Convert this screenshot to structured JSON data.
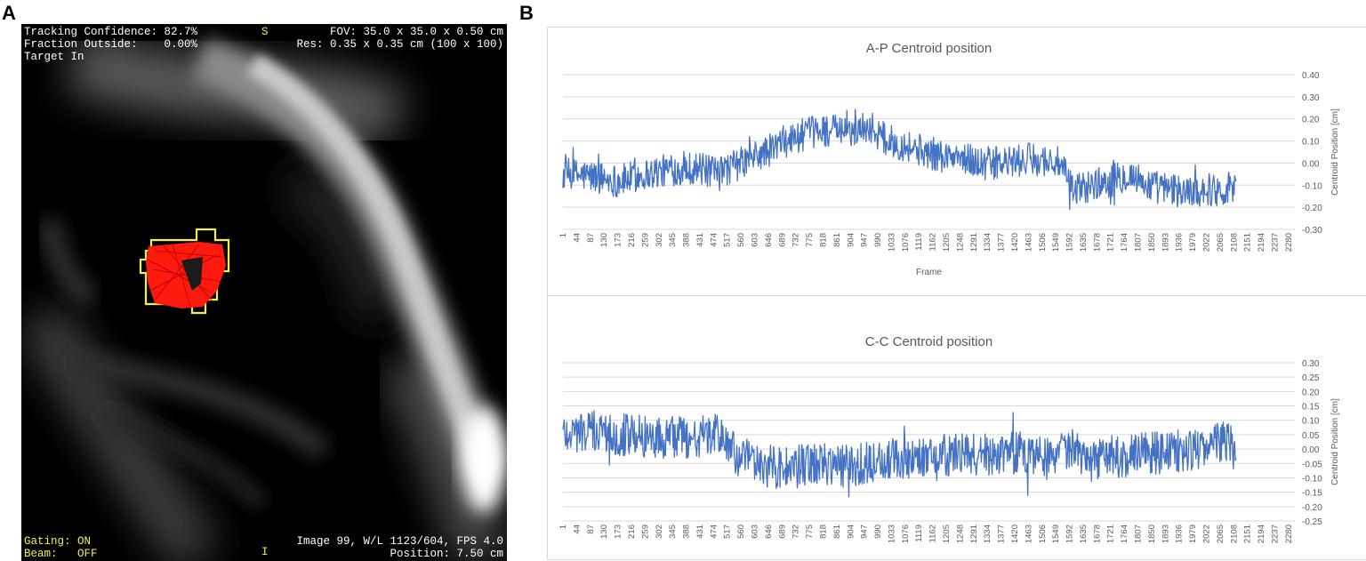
{
  "panels": {
    "a_label": "A",
    "b_label": "B"
  },
  "mri_overlay": {
    "tracking_confidence": "Tracking Confidence: 82.7%",
    "fraction_outside": "Fraction Outside:    0.00%",
    "target_status": "Target In",
    "orient_top": "S",
    "fov": "FOV: 35.0 x 35.0 x 0.50 cm",
    "res": "Res: 0.35 x 0.35 cm (100 x 100)",
    "gating_label": "Gating:",
    "gating_value": "ON",
    "beam_label": "Beam:",
    "beam_value": "OFF",
    "orient_bottom": "I",
    "image_info": "Image 99, W/L 1123/604, FPS 4.0",
    "position": "Position: 7.50 cm",
    "colors": {
      "overlay_text": "#ffffff",
      "status_text": "#f4f04a",
      "contour": "#f4f04a",
      "tracked_region": "#ff0000"
    }
  },
  "chart_data": [
    {
      "type": "line",
      "title": "A-P Centroid position",
      "xlabel": "Frame",
      "ylabel": "Centroid Position [cm]",
      "ylim": [
        -0.3,
        0.4
      ],
      "yticks": [
        "0.40",
        "0.30",
        "0.20",
        "0.10",
        "0.00",
        "-0.10",
        "-0.20",
        "-0.30"
      ],
      "x_tick_labels": [
        "1",
        "44",
        "87",
        "130",
        "173",
        "216",
        "259",
        "302",
        "345",
        "388",
        "431",
        "474",
        "517",
        "560",
        "603",
        "646",
        "689",
        "732",
        "775",
        "818",
        "861",
        "904",
        "947",
        "990",
        "1033",
        "1076",
        "1119",
        "1162",
        "1205",
        "1248",
        "1291",
        "1334",
        "1377",
        "1420",
        "1463",
        "1506",
        "1549",
        "1592",
        "1635",
        "1678",
        "1721",
        "1764",
        "1807",
        "1850",
        "1893",
        "1936",
        "1979",
        "2022",
        "2065",
        "2108",
        "2151",
        "2194",
        "2237",
        "2280"
      ],
      "x_range": [
        1,
        2300
      ],
      "n_frames": 2116,
      "grid": true,
      "series_color": "#4472c4",
      "series": [
        {
          "x": [
            1,
            90,
            180,
            260,
            340,
            420,
            480,
            560,
            640,
            700,
            760,
            820,
            900,
            960,
            1020,
            1080,
            1140,
            1200,
            1260,
            1320,
            1400,
            1480,
            1560,
            1600,
            1660,
            1720,
            1780,
            1840,
            1900,
            1960,
            2020,
            2080,
            2116
          ],
          "values": [
            -0.05,
            -0.06,
            -0.08,
            -0.05,
            -0.03,
            -0.02,
            -0.05,
            0.0,
            0.05,
            0.1,
            0.13,
            0.15,
            0.14,
            0.17,
            0.1,
            0.08,
            0.05,
            0.03,
            0.02,
            0.0,
            0.0,
            0.02,
            0.0,
            -0.12,
            -0.1,
            -0.08,
            -0.05,
            -0.1,
            -0.12,
            -0.13,
            -0.12,
            -0.12,
            -0.08
          ]
        }
      ]
    },
    {
      "type": "line",
      "title": "C-C Centroid position",
      "xlabel": "Frame",
      "ylabel": "Centroid Position [cm]",
      "ylim": [
        -0.25,
        0.3
      ],
      "yticks": [
        "0.30",
        "0.25",
        "0.20",
        "0.15",
        "0.10",
        "0.05",
        "0.00",
        "-0.05",
        "-0.10",
        "-0.15",
        "-0.20",
        "-0.25"
      ],
      "x_tick_labels": [
        "1",
        "44",
        "87",
        "130",
        "173",
        "216",
        "259",
        "302",
        "345",
        "388",
        "431",
        "474",
        "517",
        "560",
        "603",
        "646",
        "689",
        "732",
        "775",
        "818",
        "861",
        "904",
        "947",
        "990",
        "1033",
        "1076",
        "1119",
        "1162",
        "1205",
        "1248",
        "1291",
        "1334",
        "1377",
        "1420",
        "1463",
        "1506",
        "1549",
        "1592",
        "1635",
        "1678",
        "1721",
        "1764",
        "1807",
        "1850",
        "1893",
        "1936",
        "1979",
        "2022",
        "2065",
        "2108",
        "2151",
        "2194",
        "2237",
        "2280"
      ],
      "x_range": [
        1,
        2300
      ],
      "n_frames": 2116,
      "grid": true,
      "series_color": "#4472c4",
      "series": [
        {
          "x": [
            1,
            100,
            200,
            300,
            400,
            500,
            540,
            600,
            700,
            800,
            900,
            1000,
            1100,
            1200,
            1300,
            1400,
            1500,
            1600,
            1640,
            1700,
            1800,
            1900,
            2000,
            2060,
            2116
          ],
          "values": [
            0.06,
            0.06,
            0.05,
            0.04,
            0.04,
            0.05,
            -0.02,
            -0.05,
            -0.07,
            -0.05,
            -0.06,
            -0.04,
            -0.03,
            -0.02,
            -0.02,
            -0.01,
            -0.02,
            0.0,
            -0.05,
            -0.03,
            -0.02,
            -0.01,
            0.0,
            0.03,
            0.0
          ]
        }
      ]
    }
  ]
}
